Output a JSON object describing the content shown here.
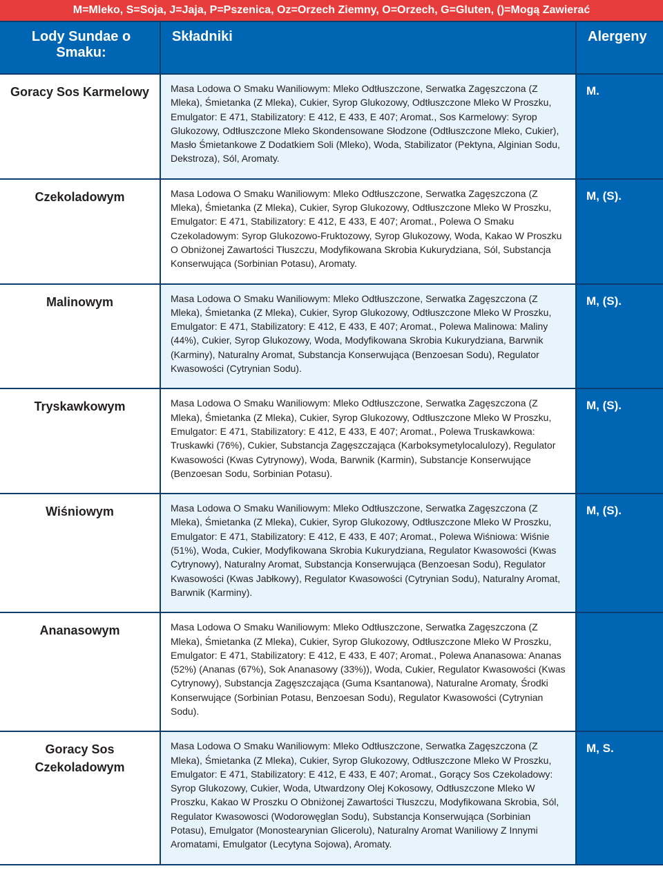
{
  "colors": {
    "legend_bg": "#e73c3c",
    "header_bg": "#0066b3",
    "allergen_bg": "#0066b3",
    "row_border": "#0a3d6b",
    "alt_row_bg": "#e8f4fb",
    "text": "#231f20",
    "white": "#ffffff"
  },
  "typography": {
    "header_fontsize": 20,
    "flavor_fontsize": 18,
    "allergen_fontsize": 17,
    "ingredient_fontsize": 14,
    "legend_fontsize": 16
  },
  "legend_text": "M=Mleko, S=Soja, J=Jaja, P=Pszenica, Oz=Orzech Ziemny, O=Orzech, G=Gluten, ()=Mogą Zawierać",
  "headers": {
    "flavor": "Lody Sundae o Smaku:",
    "ingredients": "Składniki",
    "allergens": "Alergeny"
  },
  "rows": [
    {
      "flavor": "Goracy Sos Karmelowy",
      "ingredients": "Masa Lodowa O Smaku Waniliowym: Mleko Odtłuszczone, Serwatka Zagęszczona (Z Mleka), Śmietanka (Z Mleka), Cukier, Syrop Glukozowy, Odtłuszczone Mleko W Proszku, Emulgator: E 471, Stabilizatory: E 412, E 433, E 407; Aromat., Sos Karmelowy: Syrop Glukozowy, Odtłuszczone Mleko Skondensowane Słodzone (Odtłuszczone Mleko, Cukier), Masło Śmietankowe Z Dodatkiem Soli (Mleko), Woda, Stabilizator (Pektyna, Alginian Sodu, Dekstroza), Sól, Aromaty.",
      "allergens": "M.",
      "alt": true
    },
    {
      "flavor": "Czekoladowym",
      "ingredients": "Masa Lodowa O Smaku Waniliowym: Mleko Odtłuszczone, Serwatka Zagęszczona (Z Mleka), Śmietanka (Z Mleka), Cukier, Syrop Glukozowy, Odtłuszczone Mleko W Proszku, Emulgator: E 471, Stabilizatory: E 412, E 433, E 407; Aromat., Polewa O Smaku Czekoladowym: Syrop Glukozowo-Fruktozowy, Syrop Glukozowy, Woda, Kakao W Proszku O Obniżonej Zawartości Tłuszczu, Modyfikowana Skrobia Kukurydziana, Sól, Substancja Konserwująca (Sorbinian Potasu), Aromaty.",
      "allergens": "M, (S).",
      "alt": false
    },
    {
      "flavor": "Malinowym",
      "ingredients": "Masa Lodowa O Smaku Waniliowym: Mleko Odtłuszczone, Serwatka Zagęszczona (Z Mleka), Śmietanka (Z Mleka), Cukier, Syrop Glukozowy, Odtłuszczone Mleko W Proszku, Emulgator: E 471, Stabilizatory: E 412, E 433, E 407; Aromat., Polewa Malinowa: Maliny (44%), Cukier, Syrop Glukozowy, Woda, Modyfikowana Skrobia Kukurydziana, Barwnik (Karminy), Naturalny Aromat, Substancja Konserwująca (Benzoesan Sodu), Regulator Kwasowości (Cytrynian Sodu).",
      "allergens": "M, (S).",
      "alt": true
    },
    {
      "flavor": "Tryskawkowym",
      "ingredients": "Masa Lodowa O Smaku Waniliowym: Mleko Odtłuszczone, Serwatka Zagęszczona (Z Mleka), Śmietanka (Z Mleka), Cukier, Syrop Glukozowy, Odtłuszczone Mleko W Proszku, Emulgator: E 471, Stabilizatory: E 412, E 433, E 407; Aromat., Polewa Truskawkowa: Truskawki (76%), Cukier, Substancja Zagęszczająca (Karboksymetylocalulozy), Regulator Kwasowości (Kwas Cytrynowy), Woda, Barwnik (Karmin), Substancje Konserwujące (Benzoesan Sodu, Sorbinian Potasu).",
      "allergens": "M, (S).",
      "alt": false
    },
    {
      "flavor": "Wiśniowym",
      "ingredients": "Masa Lodowa O Smaku Waniliowym: Mleko Odtłuszczone, Serwatka Zagęszczona (Z Mleka), Śmietanka (Z Mleka), Cukier, Syrop Glukozowy, Odtłuszczone Mleko W Proszku, Emulgator: E 471, Stabilizatory: E 412, E 433, E 407; Aromat., Polewa Wiśniowa: Wiśnie (51%), Woda, Cukier, Modyfikowana Skrobia Kukurydziana, Regulator Kwasowości (Kwas Cytrynowy), Naturalny Aromat, Substancja Konserwująca (Benzoesan Sodu), Regulator Kwasowości (Kwas Jabłkowy), Regulator Kwasowości (Cytrynian Sodu), Naturalny Aromat, Barwnik (Karminy).",
      "allergens": "M, (S).",
      "alt": true
    },
    {
      "flavor": "Ananasowym",
      "ingredients": "Masa Lodowa O Smaku Waniliowym: Mleko Odtłuszczone, Serwatka Zagęszczona (Z Mleka), Śmietanka (Z Mleka), Cukier, Syrop Glukozowy, Odtłuszczone Mleko W Proszku, Emulgator: E 471, Stabilizatory: E 412, E 433, E 407; Aromat., Polewa Ananasowa: Ananas (52%) (Ananas (67%), Sok Ananasowy (33%)), Woda, Cukier, Regulator Kwasowości (Kwas Cytrynowy), Substancja Zagęszczająca (Guma Ksantanowa), Naturalne Aromaty, Środki Konserwujące (Sorbinian Potasu, Benzoesan Sodu), Regulator Kwasowości (Cytrynian Sodu).",
      "allergens": "",
      "alt": false
    },
    {
      "flavor": "Goracy Sos Czekoladowym",
      "ingredients": "Masa Lodowa O Smaku Waniliowym: Mleko Odtłuszczone, Serwatka Zagęszczona (Z Mleka), Śmietanka (Z Mleka), Cukier, Syrop Glukozowy, Odtłuszczone Mleko W Proszku, Emulgator: E 471, Stabilizatory: E 412, E 433, E 407; Aromat., Gorący Sos Czekoladowy: Syrop Glukozowy, Cukier, Woda, Utwardzony Olej Kokosowy, Odtłuszczone Mleko W Proszku, Kakao W Proszku O Obniżonej Zawartości Tłuszczu, Modyfikowana Skrobia, Sól, Regulator Kwasowosci (Wodorowęglan Sodu), Substancja Konserwująca (Sorbinian Potasu), Emulgator (Monostearynian Glicerolu), Naturalny Aromat Waniliowy Z Innymi Aromatami, Emulgator (Lecytyna Sojowa), Aromaty.",
      "allergens": "M, S.",
      "alt": true
    }
  ]
}
